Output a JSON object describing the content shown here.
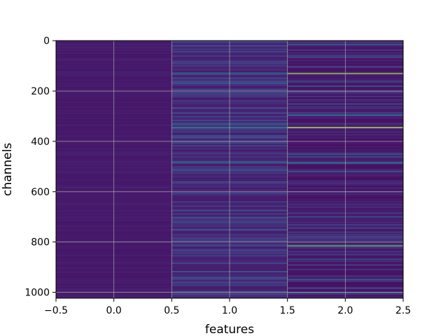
{
  "chart_data": {
    "type": "heatmap",
    "title": "",
    "xlabel": "features",
    "ylabel": "channels",
    "xlim": [
      -0.5,
      2.5
    ],
    "ylim": [
      1023.5,
      -0.5
    ],
    "x_ticks": [
      -0.5,
      0.0,
      0.5,
      1.0,
      1.5,
      2.0,
      2.5
    ],
    "x_tick_labels": [
      "−0.5",
      "0.0",
      "0.5",
      "1.0",
      "1.5",
      "2.0",
      "2.5"
    ],
    "y_ticks": [
      0,
      200,
      400,
      600,
      800,
      1000
    ],
    "y_tick_labels": [
      "0",
      "200",
      "400",
      "600",
      "800",
      "1000"
    ],
    "grid": true,
    "colormap": "viridis",
    "features": [
      0,
      1,
      2
    ],
    "channel_count": 1024,
    "columns": [
      {
        "feature": 0,
        "base_level": 0.08,
        "highlights": []
      },
      {
        "feature": 1,
        "base_level": 0.1,
        "highlights": [
          {
            "channel": 20,
            "level": 0.32
          },
          {
            "channel": 60,
            "level": 0.3
          },
          {
            "channel": 128,
            "level": 0.45
          },
          {
            "channel": 133,
            "level": 0.4
          },
          {
            "channel": 170,
            "level": 0.3
          },
          {
            "channel": 205,
            "level": 0.38
          },
          {
            "channel": 300,
            "level": 0.3
          },
          {
            "channel": 345,
            "level": 0.62
          },
          {
            "channel": 400,
            "level": 0.3
          },
          {
            "channel": 480,
            "level": 0.45
          },
          {
            "channel": 485,
            "level": 0.42
          },
          {
            "channel": 560,
            "level": 0.3
          },
          {
            "channel": 640,
            "level": 0.3
          },
          {
            "channel": 720,
            "level": 0.3
          },
          {
            "channel": 815,
            "level": 0.35
          },
          {
            "channel": 918,
            "level": 0.45
          },
          {
            "channel": 960,
            "level": 0.3
          }
        ]
      },
      {
        "feature": 2,
        "base_level": 0.06,
        "highlights": [
          {
            "channel": 15,
            "level": 0.45
          },
          {
            "channel": 65,
            "level": 0.35
          },
          {
            "channel": 130,
            "level": 0.92
          },
          {
            "channel": 160,
            "level": 0.4
          },
          {
            "channel": 180,
            "level": 0.45
          },
          {
            "channel": 200,
            "level": 0.35
          },
          {
            "channel": 250,
            "level": 0.35
          },
          {
            "channel": 295,
            "level": 0.55
          },
          {
            "channel": 345,
            "level": 0.95
          },
          {
            "channel": 450,
            "level": 0.5
          },
          {
            "channel": 485,
            "level": 0.58
          },
          {
            "channel": 520,
            "level": 0.35
          },
          {
            "channel": 600,
            "level": 0.4
          },
          {
            "channel": 700,
            "level": 0.35
          },
          {
            "channel": 760,
            "level": 0.35
          },
          {
            "channel": 815,
            "level": 0.82
          },
          {
            "channel": 870,
            "level": 0.35
          },
          {
            "channel": 950,
            "level": 0.45
          },
          {
            "channel": 1000,
            "level": 0.4
          }
        ]
      }
    ]
  }
}
